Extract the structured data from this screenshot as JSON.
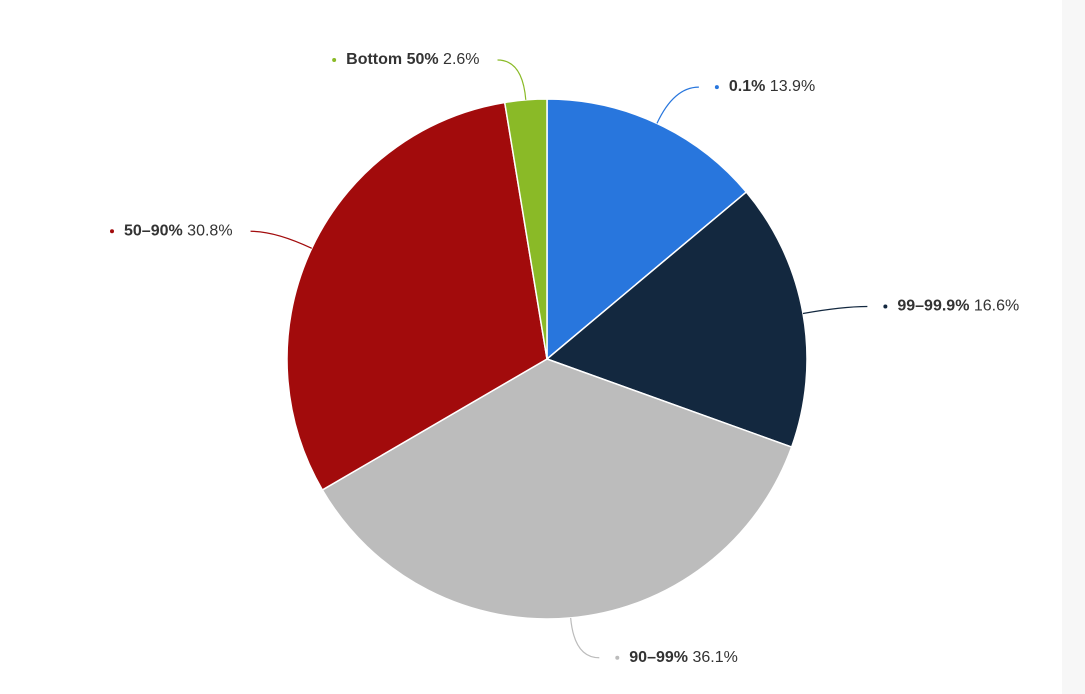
{
  "chart_data": {
    "type": "pie",
    "categories": [
      "0.1%",
      "99–99.9%",
      "90–99%",
      "50–90%",
      "Bottom 50%"
    ],
    "values": [
      13.9,
      16.6,
      36.1,
      30.8,
      2.6
    ],
    "value_labels": [
      "13.9%",
      "16.6%",
      "36.1%",
      "30.8%",
      "2.6%"
    ],
    "colors": [
      "#2876dd",
      "#13283f",
      "#bcbcbc",
      "#a20b0c",
      "#8aba27"
    ]
  }
}
